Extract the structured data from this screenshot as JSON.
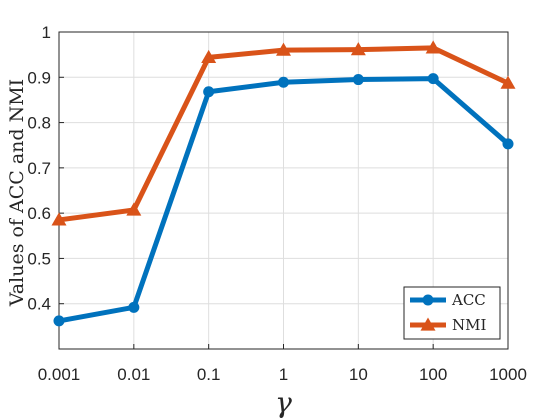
{
  "chart_data": {
    "type": "line",
    "xlabel": "γ",
    "ylabel": "Values of ACC and NMI",
    "categories": [
      "0.001",
      "0.01",
      "0.1",
      "1",
      "10",
      "100",
      "1000"
    ],
    "ylim": [
      0.3,
      1.0
    ],
    "yticks": [
      "0.4",
      "0.5",
      "0.6",
      "0.7",
      "0.8",
      "0.9",
      "1"
    ],
    "grid": true,
    "legend_position": "bottom-right",
    "series": [
      {
        "name": "ACC",
        "color": "#0072BD",
        "marker": "circle",
        "values": [
          0.362,
          0.392,
          0.868,
          0.889,
          0.895,
          0.897,
          0.753
        ]
      },
      {
        "name": "NMI",
        "color": "#D95319",
        "marker": "triangle",
        "values": [
          0.585,
          0.607,
          0.944,
          0.96,
          0.961,
          0.965,
          0.887
        ]
      }
    ]
  }
}
